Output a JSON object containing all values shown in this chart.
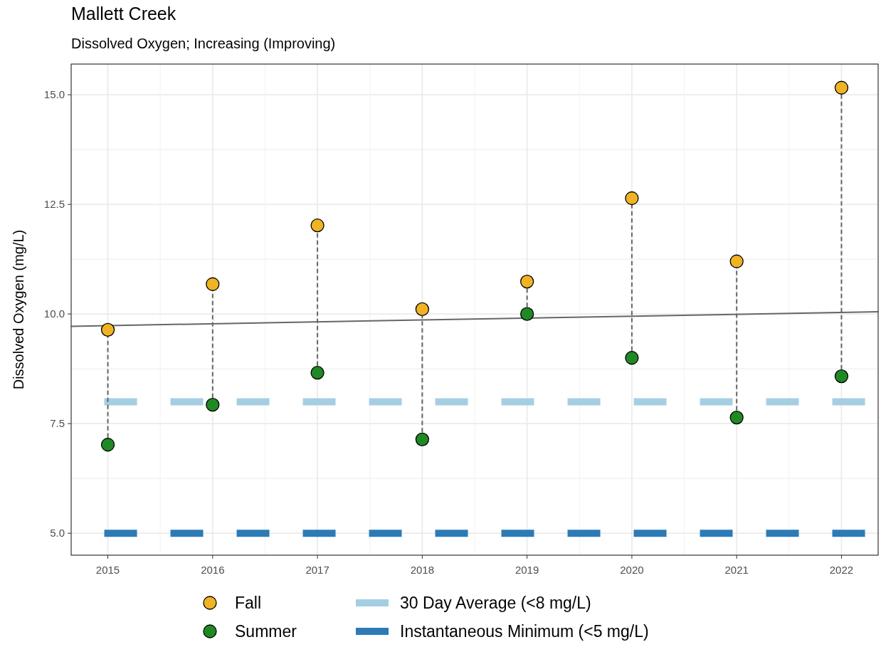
{
  "chart_data": {
    "type": "scatter",
    "title": "Mallett Creek",
    "subtitle": "Dissolved Oxygen; Increasing (Improving)",
    "ylabel": "Dissolved Oxygen (mg/L)",
    "x": [
      2015,
      2016,
      2017,
      2018,
      2019,
      2020,
      2021,
      2022
    ],
    "series": [
      {
        "type": "line",
        "x": [
          2015,
          2015
        ],
        "values": [
          7.02,
          9.64
        ],
        "color": "#666666",
        "line_style": "dashed"
      },
      {
        "type": "line",
        "x": [
          2016,
          2016
        ],
        "values": [
          7.93,
          10.68
        ],
        "color": "#666666",
        "line_style": "dashed"
      },
      {
        "type": "line",
        "x": [
          2017,
          2017
        ],
        "values": [
          8.66,
          12.02
        ],
        "color": "#666666",
        "line_style": "dashed"
      },
      {
        "type": "line",
        "x": [
          2018,
          2018
        ],
        "values": [
          7.14,
          10.11
        ],
        "color": "#666666",
        "line_style": "dashed"
      },
      {
        "type": "line",
        "x": [
          2019,
          2019
        ],
        "values": [
          10.0,
          10.74
        ],
        "color": "#666666",
        "line_style": "dashed"
      },
      {
        "type": "line",
        "x": [
          2020,
          2020
        ],
        "values": [
          9.0,
          12.64
        ],
        "color": "#666666",
        "line_style": "dashed"
      },
      {
        "type": "line",
        "x": [
          2021,
          2021
        ],
        "values": [
          7.64,
          11.2
        ],
        "color": "#666666",
        "line_style": "dashed"
      },
      {
        "type": "line",
        "x": [
          2022,
          2022
        ],
        "values": [
          8.58,
          15.16
        ],
        "color": "#666666",
        "line_style": "dashed"
      },
      {
        "type": "line",
        "x": [
          2014.65,
          2022.35
        ],
        "values": [
          9.72,
          10.05
        ],
        "color": "#666666",
        "line_style": "solid"
      },
      {
        "name": "Fall",
        "color": "#f0b323",
        "values": [
          9.64,
          10.68,
          12.02,
          10.11,
          10.74,
          12.64,
          11.2,
          15.16
        ]
      },
      {
        "name": "Summer",
        "color": "#1f8a24",
        "values": [
          7.02,
          7.93,
          8.66,
          7.14,
          10.0,
          9.0,
          7.64,
          8.58
        ]
      }
    ],
    "ref_lines": [
      {
        "axis": "y",
        "value": 8,
        "label": "30 Day Average (<8 mg/L)",
        "color": "#a6cee3",
        "line_style": "dashed"
      },
      {
        "axis": "y",
        "value": 5,
        "label": "Instantaneous Minimum (<5 mg/L)",
        "color": "#2c7bb6",
        "line_style": "dashed"
      }
    ],
    "xlim": [
      2014.65,
      2022.35
    ],
    "ylim": [
      4.5,
      15.7
    ],
    "xticks": [
      2015,
      2016,
      2017,
      2018,
      2019,
      2020,
      2021,
      2022
    ],
    "yticks": [
      {
        "value": 5,
        "label": "5.0"
      },
      {
        "value": 6.25,
        "label": null
      },
      {
        "value": 7.5,
        "label": "7.5"
      },
      {
        "value": 8.75,
        "label": null
      },
      {
        "value": 10,
        "label": "10.0"
      },
      {
        "value": 11.25,
        "label": null
      },
      {
        "value": 12.5,
        "label": "12.5"
      },
      {
        "value": 13.75,
        "label": null
      },
      {
        "value": 15,
        "label": "15.0"
      }
    ],
    "grid": true,
    "legend": "bottom"
  }
}
